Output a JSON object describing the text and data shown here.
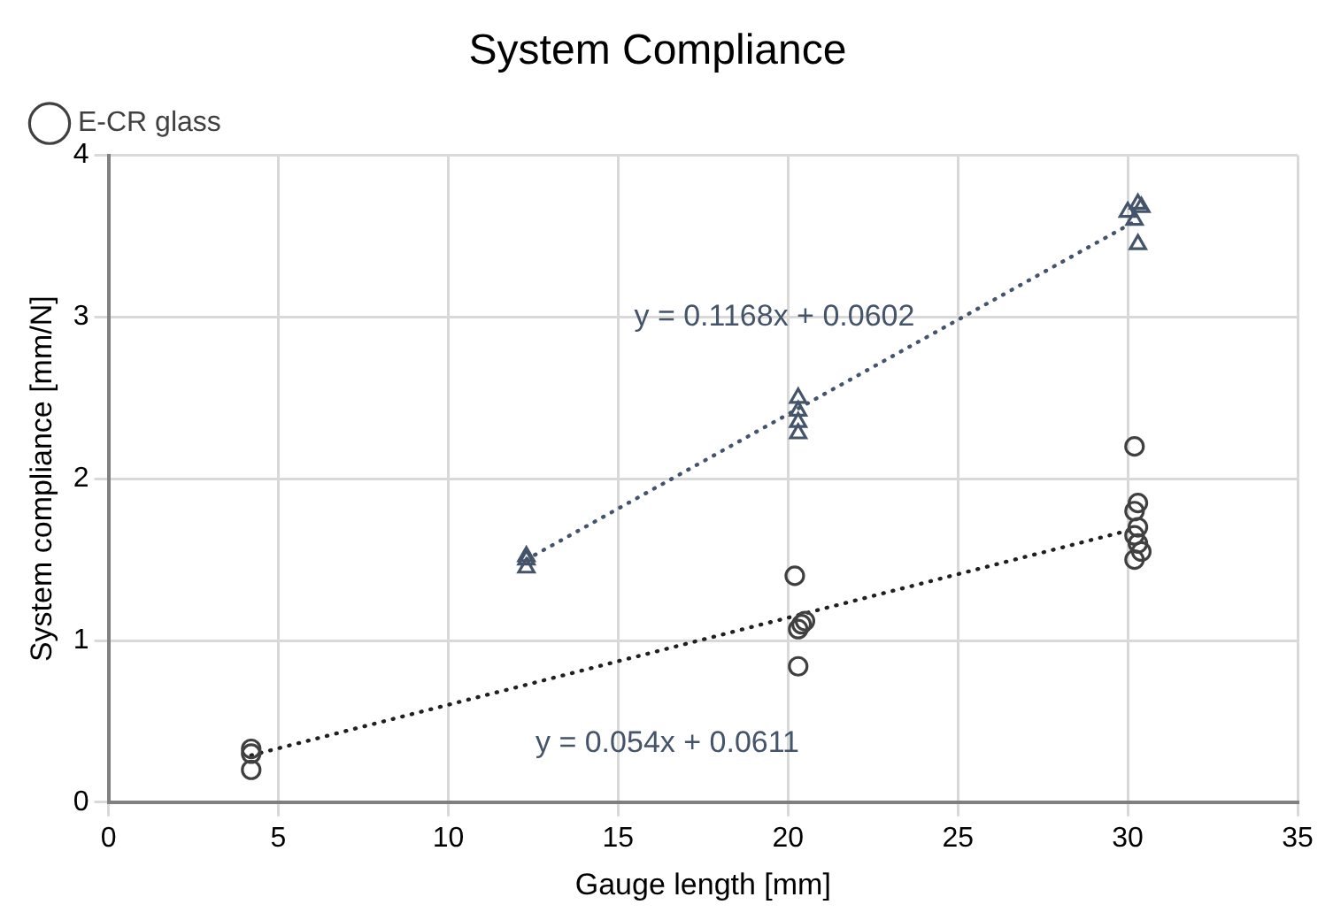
{
  "chart_data": {
    "type": "scatter",
    "title": "System Compliance",
    "xlabel": "Gauge length [mm]",
    "ylabel": "System compliance [mm/N]",
    "xlim": [
      0,
      35
    ],
    "xticks": [
      0,
      5,
      10,
      15,
      20,
      25,
      30,
      35
    ],
    "ylim": [
      0,
      4
    ],
    "yticks": [
      0,
      1,
      2,
      3,
      4
    ],
    "grid": true,
    "legend": "top left",
    "series": [
      {
        "color": "#44546a",
        "marker": "triangle",
        "x": [
          12.3,
          12.3,
          12.3,
          20.3,
          20.3,
          20.3,
          20.3,
          30.0,
          30.2,
          30.3,
          30.4,
          30.3
        ],
        "values": [
          1.45,
          1.5,
          1.52,
          2.28,
          2.35,
          2.42,
          2.5,
          3.65,
          3.6,
          3.7,
          3.68,
          3.45
        ]
      },
      {
        "name": "E-CR glass",
        "color": "#404040",
        "marker": "circle",
        "x": [
          4.2,
          4.2,
          4.2,
          20.2,
          20.3,
          20.4,
          20.5,
          20.3,
          30.2,
          30.3,
          30.2,
          30.3,
          30.2,
          30.3,
          30.4,
          30.2
        ],
        "values": [
          0.2,
          0.3,
          0.33,
          1.4,
          1.07,
          1.1,
          1.12,
          0.84,
          2.2,
          1.85,
          1.8,
          1.7,
          1.65,
          1.6,
          1.55,
          1.5
        ]
      },
      {
        "type": "line",
        "color": "#44546a",
        "marker": "none",
        "line_style": "dotted",
        "x": [
          12.3,
          30.2
        ],
        "values": [
          1.5,
          3.59
        ]
      },
      {
        "type": "line",
        "color": "#202020",
        "marker": "none",
        "line_style": "dotted",
        "x": [
          4.2,
          30.2
        ],
        "values": [
          0.29,
          1.69
        ]
      }
    ],
    "annotations": [
      "y = 0.1168x + 0.0602",
      "y = 0.054x + 0.0611"
    ]
  }
}
